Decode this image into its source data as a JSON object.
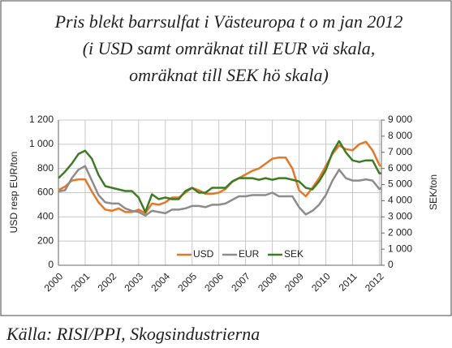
{
  "chart_data": {
    "type": "line",
    "title": [
      "Pris blekt barrsulfat i Västeuropa t o m jan 2012",
      "(i USD samt omräknat till EUR vä skala,",
      "omräknat till SEK hö skala)"
    ],
    "ylabel": "USD resp EUR/ton",
    "y2label": "SEK/ton",
    "source": "Källa: RISI/PPI, Skogsindustrierna",
    "x": [
      2000,
      2000.25,
      2000.5,
      2000.75,
      2001,
      2001.25,
      2001.5,
      2001.75,
      2002,
      2002.25,
      2002.5,
      2002.75,
      2003,
      2003.25,
      2003.5,
      2003.75,
      2004,
      2004.25,
      2004.5,
      2004.75,
      2005,
      2005.25,
      2005.5,
      2005.75,
      2006,
      2006.25,
      2006.5,
      2006.75,
      2007,
      2007.25,
      2007.5,
      2007.75,
      2008,
      2008.25,
      2008.5,
      2008.75,
      2009,
      2009.25,
      2009.5,
      2009.75,
      2010,
      2010.25,
      2010.5,
      2010.75,
      2011,
      2011.25,
      2011.5,
      2011.75,
      2012,
      2012.08
    ],
    "series": [
      {
        "name": "USD",
        "color": "#e87722",
        "values": [
          620,
          650,
          700,
          710,
          710,
          610,
          520,
          460,
          450,
          470,
          440,
          440,
          460,
          430,
          510,
          500,
          520,
          560,
          560,
          600,
          640,
          620,
          590,
          590,
          600,
          630,
          690,
          720,
          750,
          780,
          800,
          840,
          880,
          890,
          890,
          800,
          620,
          570,
          640,
          720,
          820,
          920,
          990,
          960,
          950,
          1000,
          1020,
          950,
          830,
          820
        ]
      },
      {
        "name": "EUR",
        "color": "#8c8c8c",
        "values": [
          610,
          620,
          720,
          790,
          820,
          700,
          580,
          520,
          510,
          510,
          470,
          450,
          440,
          410,
          450,
          440,
          430,
          460,
          460,
          470,
          490,
          490,
          480,
          500,
          500,
          510,
          540,
          570,
          570,
          580,
          580,
          580,
          600,
          570,
          570,
          570,
          480,
          420,
          450,
          500,
          580,
          700,
          790,
          720,
          700,
          700,
          710,
          700,
          630,
          640
        ]
      },
      {
        "name": "SEK",
        "color": "#3a7d22",
        "axis": "y2",
        "values": [
          5400,
          5800,
          6300,
          6900,
          7100,
          6600,
          5600,
          4900,
          4800,
          4700,
          4600,
          4600,
          4200,
          3300,
          4400,
          4100,
          4200,
          4100,
          4100,
          4600,
          4800,
          4500,
          4500,
          4800,
          4800,
          4800,
          5200,
          5400,
          5400,
          5400,
          5300,
          5400,
          5300,
          5400,
          5400,
          5300,
          5200,
          4800,
          4700,
          5200,
          5900,
          7000,
          7700,
          7000,
          6500,
          6400,
          6500,
          6500,
          5700,
          5700
        ]
      }
    ],
    "xlim": [
      2000,
      2012.08
    ],
    "xticks": [
      2000,
      2001,
      2002,
      2003,
      2004,
      2005,
      2006,
      2007,
      2008,
      2009,
      2010,
      2011,
      2012
    ],
    "ylim": [
      0,
      1200
    ],
    "yticks": [
      0,
      200,
      400,
      600,
      800,
      {
        "value": 1000,
        "label": "1 000"
      },
      {
        "value": 1200,
        "label": "1 200"
      }
    ],
    "y2lim": [
      0,
      9000
    ],
    "y2ticks": [
      0,
      {
        "value": 1000,
        "label": "1 000"
      },
      {
        "value": 2000,
        "label": "2 000"
      },
      {
        "value": 3000,
        "label": "3 000"
      },
      {
        "value": 4000,
        "label": "4 000"
      },
      {
        "value": 5000,
        "label": "5 000"
      },
      {
        "value": 6000,
        "label": "6 000"
      },
      {
        "value": 7000,
        "label": "7 000"
      },
      {
        "value": 8000,
        "label": "8 000"
      },
      {
        "value": 9000,
        "label": "9 000"
      }
    ],
    "grid": true,
    "legend": "bottom"
  }
}
